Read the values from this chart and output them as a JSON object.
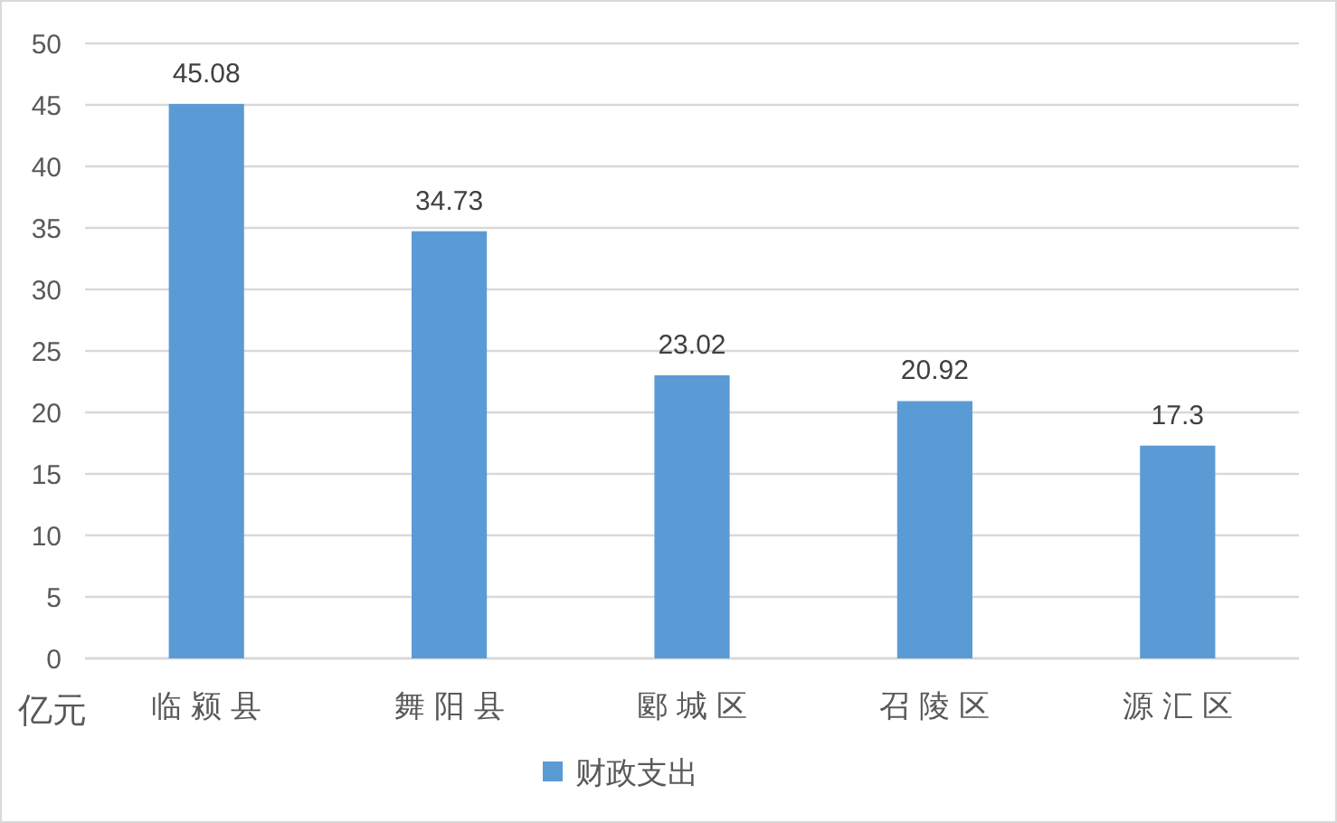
{
  "chart_data": {
    "type": "bar",
    "ylabel": "亿元",
    "categories": [
      "临颍县",
      "舞阳县",
      "郾城区",
      "召陵区",
      "源汇区"
    ],
    "series": [
      {
        "name": "财政支出",
        "color": "#5b9bd5",
        "values": [
          45.08,
          34.73,
          23.02,
          20.92,
          17.3
        ]
      }
    ],
    "ylim": [
      0,
      50
    ],
    "yticks": [
      0,
      5,
      10,
      15,
      20,
      25,
      30,
      35,
      40,
      45,
      50
    ],
    "grid": "y",
    "legend": "bottom",
    "data_labels": true
  }
}
